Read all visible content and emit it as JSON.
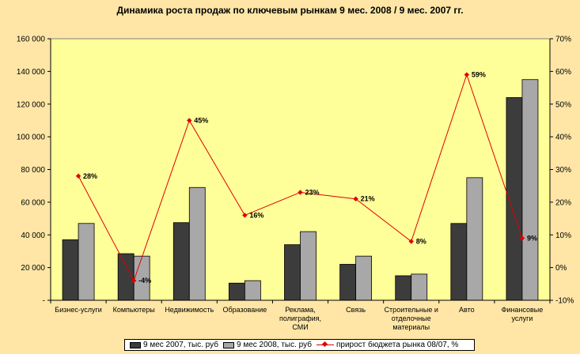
{
  "chart_data": {
    "type": "bar",
    "title": "Динамика роста продаж по ключевым рынкам 9 мес. 2008 / 9 мес. 2007 гг.",
    "categories": [
      [
        "Бизнес-услуги"
      ],
      [
        "Компьютеры"
      ],
      [
        "Недвижимость"
      ],
      [
        "Образование"
      ],
      [
        "Реклама,",
        "полиграфия,",
        "СМИ"
      ],
      [
        "Связь"
      ],
      [
        "Строительные и",
        "отделочные",
        "материалы"
      ],
      [
        "Авто"
      ],
      [
        "Финансовые",
        "услуги"
      ]
    ],
    "series": [
      {
        "name": "9 мес 2007, тыс. руб",
        "type": "bar",
        "axis": "left",
        "color": "#3C3C3C",
        "values": [
          37000,
          28500,
          47500,
          10500,
          34000,
          22000,
          15000,
          47000,
          124000
        ]
      },
      {
        "name": "9 мес 2008, тыс. руб",
        "type": "bar",
        "axis": "left",
        "color": "#A8A8A8",
        "values": [
          47000,
          27000,
          69000,
          12000,
          42000,
          27000,
          16000,
          75000,
          135000
        ]
      },
      {
        "name": "прирост бюджета рынка 08/07, %",
        "type": "line",
        "axis": "right",
        "color": "#E00000",
        "values": [
          28,
          -4,
          45,
          16,
          23,
          21,
          8,
          59,
          9
        ],
        "labels": [
          "28%",
          "-4%",
          "45%",
          "16%",
          "23%",
          "21%",
          "8%",
          "59%",
          "9%"
        ]
      }
    ],
    "y_left": {
      "ylim": [
        0,
        160000
      ],
      "ticks": [
        0,
        20000,
        40000,
        60000,
        80000,
        100000,
        120000,
        140000,
        160000
      ],
      "tick_labels": [
        "-",
        "20 000",
        "40 000",
        "60 000",
        "80 000",
        "100 000",
        "120 000",
        "140 000",
        "160 000"
      ]
    },
    "y_right": {
      "ylim": [
        -10,
        70
      ],
      "ticks": [
        -10,
        0,
        10,
        20,
        30,
        40,
        50,
        60,
        70
      ],
      "tick_labels": [
        "-10%",
        "0%",
        "10%",
        "20%",
        "30%",
        "40%",
        "50%",
        "60%",
        "70%"
      ]
    },
    "grid": false,
    "plot_background": "#FFFF99",
    "legend_position": "bottom"
  }
}
